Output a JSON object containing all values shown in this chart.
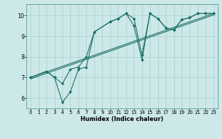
{
  "title": "",
  "xlabel": "Humidex (Indice chaleur)",
  "background_color": "#cce8e8",
  "grid_color": "#aacccc",
  "line_color": "#1a6e65",
  "xlim": [
    -0.5,
    23.5
  ],
  "ylim": [
    5.5,
    10.55
  ],
  "xticks": [
    0,
    1,
    2,
    3,
    4,
    5,
    6,
    7,
    8,
    9,
    10,
    11,
    12,
    13,
    14,
    15,
    16,
    17,
    18,
    19,
    20,
    21,
    22,
    23
  ],
  "yticks": [
    6,
    7,
    8,
    9,
    10
  ],
  "line1_x": [
    0,
    2,
    3,
    4,
    5,
    6,
    7,
    8,
    10,
    11,
    12,
    13,
    14,
    15,
    16,
    17,
    18,
    19,
    20,
    21,
    22,
    23
  ],
  "line1_y": [
    7.0,
    7.3,
    7.0,
    5.8,
    6.3,
    7.4,
    7.5,
    9.2,
    9.7,
    9.85,
    10.1,
    9.85,
    8.1,
    10.1,
    9.85,
    9.4,
    9.3,
    9.8,
    9.9,
    10.1,
    10.1,
    10.1
  ],
  "line2_x": [
    0,
    2,
    3,
    4,
    5,
    6,
    7,
    8,
    10,
    11,
    12,
    13,
    14,
    15,
    16,
    17,
    18,
    19,
    20,
    21,
    22,
    23
  ],
  "line2_y": [
    7.0,
    7.3,
    7.0,
    6.7,
    7.4,
    7.5,
    8.0,
    9.2,
    9.7,
    9.85,
    10.1,
    9.5,
    7.85,
    10.1,
    9.85,
    9.4,
    9.3,
    9.8,
    9.9,
    10.1,
    10.1,
    10.1
  ],
  "line3_x": [
    0,
    23
  ],
  "line3_y": [
    7.0,
    10.1
  ],
  "line4_x": [
    0,
    23
  ],
  "line4_y": [
    7.0,
    10.1
  ],
  "xlabel_fontsize": 6.0,
  "tick_fontsize_x": 5.0,
  "tick_fontsize_y": 5.5
}
